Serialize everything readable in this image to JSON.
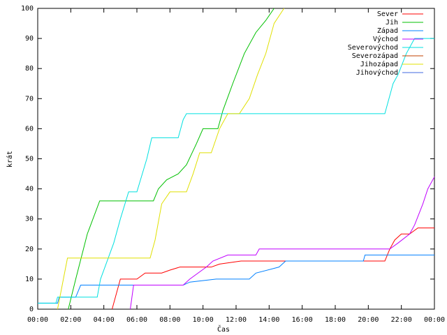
{
  "chart_data": {
    "type": "line",
    "xlabel": "Čas",
    "ylabel": "krát",
    "xlim": [
      0,
      24
    ],
    "ylim": [
      0,
      100
    ],
    "xticks": [
      {
        "value": 0,
        "label": "00:00"
      },
      {
        "value": 2,
        "label": "02:00"
      },
      {
        "value": 4,
        "label": "04:00"
      },
      {
        "value": 6,
        "label": "06:00"
      },
      {
        "value": 8,
        "label": "08:00"
      },
      {
        "value": 10,
        "label": "10:00"
      },
      {
        "value": 12,
        "label": "12:00"
      },
      {
        "value": 14,
        "label": "14:00"
      },
      {
        "value": 16,
        "label": "16:00"
      },
      {
        "value": 18,
        "label": "18:00"
      },
      {
        "value": 20,
        "label": "20:00"
      },
      {
        "value": 22,
        "label": "22:00"
      },
      {
        "value": 24,
        "label": "00:00"
      }
    ],
    "yticks": [
      0,
      10,
      20,
      30,
      40,
      50,
      60,
      70,
      80,
      90,
      100
    ],
    "grid": false,
    "legend": "top-right",
    "series": [
      {
        "name": "Sever",
        "color": "#ff0000",
        "x": [
          4.5,
          4.8,
          5.0,
          6.0,
          6.5,
          7.5,
          8.0,
          8.6,
          10.5,
          11.0,
          12.3,
          14.0,
          15.0,
          21.0,
          21.3,
          21.6,
          22.0,
          22.5,
          23.0,
          24.0
        ],
        "values": [
          0,
          6,
          10,
          10,
          12,
          12,
          13,
          14,
          14,
          15,
          16,
          16,
          16,
          16,
          20,
          23,
          25,
          25,
          27,
          27
        ]
      },
      {
        "name": "Jih",
        "color": "#00c000",
        "x": [
          1.85,
          2.3,
          3.0,
          3.75,
          7.0,
          7.3,
          7.8,
          8.5,
          9.0,
          9.6,
          10.0,
          10.9,
          11.2,
          11.8,
          12.5,
          13.2,
          13.8,
          14.3
        ],
        "values": [
          0,
          10,
          25,
          36,
          36,
          40,
          43,
          45,
          48,
          55,
          60,
          60,
          66,
          75,
          85,
          92,
          96,
          100
        ]
      },
      {
        "name": "Západ",
        "color": "#0080ff",
        "x": [
          0,
          1.2,
          1.3,
          2.3,
          2.6,
          8.8,
          9.2,
          10.8,
          12.8,
          13.2,
          14.6,
          15.0,
          19.7,
          19.8,
          24
        ],
        "values": [
          2,
          2,
          4,
          4,
          8,
          8,
          9,
          10,
          10,
          12,
          14,
          16,
          16,
          18,
          18
        ]
      },
      {
        "name": "Východ",
        "color": "#c000ff",
        "x": [
          5.6,
          5.8,
          8.8,
          9.2,
          10.2,
          10.6,
          11.5,
          13.2,
          13.4,
          21.3,
          21.8,
          22.5,
          22.8,
          23.3,
          23.6,
          24
        ],
        "values": [
          0,
          8,
          8,
          10,
          14,
          16,
          18,
          18,
          20,
          20,
          22,
          25,
          28,
          35,
          40,
          44
        ]
      },
      {
        "name": "Severovýchod",
        "color": "#00e0e0",
        "x": [
          0,
          1.1,
          1.2,
          3.6,
          3.8,
          4.6,
          5.0,
          5.5,
          6.0,
          6.6,
          6.9,
          8.5,
          8.8,
          9.0,
          21.0,
          21.5,
          21.8,
          22.3,
          22.8,
          24
        ],
        "values": [
          2,
          2,
          4,
          4,
          10,
          22,
          30,
          39,
          39,
          50,
          57,
          57,
          63,
          65,
          65,
          75,
          78,
          85,
          90,
          90
        ]
      },
      {
        "name": "Severozápad",
        "color": "#c04000",
        "x": [],
        "values": []
      },
      {
        "name": "Jihozápad",
        "color": "#e0e000",
        "x": [
          1.2,
          1.8,
          6.8,
          7.1,
          7.5,
          8.0,
          9.0,
          9.4,
          9.8,
          10.5,
          11.0,
          11.5,
          12.2,
          12.8,
          13.3,
          13.8,
          14.3,
          14.9
        ],
        "values": [
          0,
          17,
          17,
          23,
          35,
          39,
          39,
          45,
          52,
          52,
          60,
          65,
          65,
          70,
          78,
          85,
          95,
          100
        ]
      },
      {
        "name": "Jihovýchod",
        "color": "#4169e1",
        "x": [],
        "values": []
      }
    ]
  }
}
